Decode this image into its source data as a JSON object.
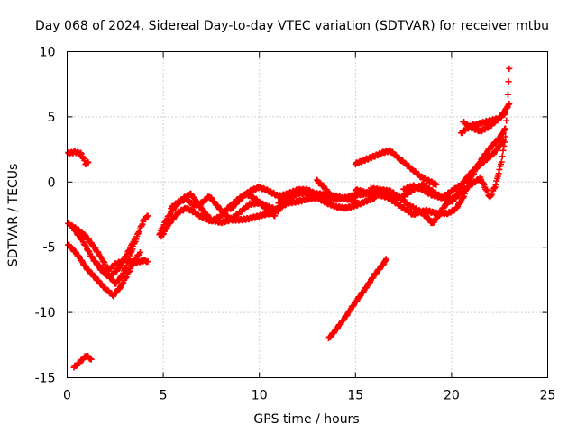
{
  "chart_data": {
    "type": "scatter",
    "title": "Day 068 of 2024, Sidereal Day-to-day VTEC variation (SDTVAR) for receiver mtbu",
    "xlabel": "GPS time / hours",
    "ylabel": "SDTVAR / TECUs",
    "xlim": [
      0,
      25
    ],
    "ylim": [
      -15,
      10
    ],
    "x_ticks": [
      "0",
      "5",
      "10",
      "15",
      "20",
      "25"
    ],
    "y_ticks": [
      "-15",
      "-10",
      "-5",
      "0",
      "5",
      "10"
    ],
    "grid": true,
    "marker": "+",
    "color": "#ff0000",
    "tracks": [
      {
        "points": [
          [
            0.05,
            2.2
          ],
          [
            0.4,
            2.3
          ],
          [
            0.7,
            2.2
          ],
          [
            0.85,
            1.8
          ],
          [
            0.95,
            1.4
          ],
          [
            1.1,
            1.5
          ]
        ]
      },
      {
        "points": [
          [
            0.35,
            -14.2
          ],
          [
            0.6,
            -13.9
          ],
          [
            0.8,
            -13.6
          ],
          [
            1.0,
            -13.3
          ],
          [
            1.25,
            -13.6
          ]
        ]
      },
      {
        "points": [
          [
            0.05,
            -3.2
          ],
          [
            0.6,
            -3.7
          ],
          [
            1.0,
            -4.2
          ],
          [
            1.5,
            -5.2
          ],
          [
            1.9,
            -6.1
          ],
          [
            2.3,
            -7.4
          ],
          [
            2.5,
            -7.8
          ],
          [
            2.8,
            -7.3
          ],
          [
            3.1,
            -6.4
          ],
          [
            3.4,
            -5.1
          ],
          [
            3.7,
            -3.9
          ],
          [
            4.0,
            -2.9
          ],
          [
            4.2,
            -2.6
          ]
        ]
      },
      {
        "points": [
          [
            0.05,
            -4.8
          ],
          [
            0.5,
            -5.5
          ],
          [
            1.0,
            -6.6
          ],
          [
            1.5,
            -7.4
          ],
          [
            2.0,
            -8.2
          ],
          [
            2.4,
            -8.7
          ],
          [
            2.8,
            -8.0
          ],
          [
            3.2,
            -6.9
          ],
          [
            3.5,
            -6.0
          ],
          [
            3.8,
            -5.4
          ]
        ]
      },
      {
        "points": [
          [
            0.3,
            -3.5
          ],
          [
            0.8,
            -4.5
          ],
          [
            1.3,
            -5.8
          ],
          [
            1.8,
            -6.8
          ],
          [
            2.2,
            -7.3
          ],
          [
            2.7,
            -6.6
          ],
          [
            3.2,
            -5.3
          ],
          [
            3.5,
            -4.4
          ]
        ]
      },
      {
        "points": [
          [
            1.5,
            -6.2
          ],
          [
            2.0,
            -6.9
          ],
          [
            2.5,
            -6.3
          ],
          [
            3.0,
            -6.0
          ],
          [
            3.5,
            -6.2
          ],
          [
            4.0,
            -6.0
          ],
          [
            4.2,
            -6.1
          ]
        ]
      },
      {
        "points": [
          [
            4.8,
            -4.0
          ],
          [
            5.2,
            -2.8
          ],
          [
            5.6,
            -1.9
          ],
          [
            6.0,
            -1.3
          ],
          [
            6.4,
            -0.9
          ],
          [
            6.7,
            -1.4
          ],
          [
            7.0,
            -2.1
          ],
          [
            7.5,
            -2.9
          ],
          [
            8.0,
            -3.1
          ],
          [
            8.5,
            -2.9
          ],
          [
            9.0,
            -2.3
          ],
          [
            9.5,
            -1.7
          ],
          [
            10.0,
            -1.6
          ],
          [
            10.5,
            -1.9
          ],
          [
            11.0,
            -2.2
          ]
        ]
      },
      {
        "points": [
          [
            4.9,
            -4.2
          ],
          [
            5.3,
            -3.2
          ],
          [
            5.8,
            -2.3
          ],
          [
            6.2,
            -2.0
          ],
          [
            6.6,
            -2.3
          ],
          [
            7.0,
            -2.7
          ],
          [
            7.5,
            -3.0
          ],
          [
            8.0,
            -2.6
          ],
          [
            8.5,
            -1.8
          ],
          [
            9.0,
            -1.2
          ],
          [
            9.3,
            -0.9
          ],
          [
            9.8,
            -1.3
          ],
          [
            10.3,
            -2.0
          ],
          [
            10.8,
            -2.6
          ]
        ]
      },
      {
        "points": [
          [
            5.4,
            -2.0
          ],
          [
            5.8,
            -1.5
          ],
          [
            6.2,
            -1.3
          ],
          [
            6.6,
            -1.8
          ],
          [
            7.0,
            -1.6
          ],
          [
            7.4,
            -1.1
          ],
          [
            7.8,
            -1.8
          ],
          [
            8.2,
            -2.5
          ],
          [
            8.6,
            -2.9
          ],
          [
            9.0,
            -2.9
          ],
          [
            9.5,
            -2.8
          ],
          [
            10.0,
            -2.6
          ],
          [
            10.5,
            -2.4
          ],
          [
            11.0,
            -2.2
          ]
        ]
      },
      {
        "points": [
          [
            8.5,
            -2.1
          ],
          [
            9.0,
            -1.3
          ],
          [
            9.5,
            -0.7
          ],
          [
            10.0,
            -0.4
          ],
          [
            10.5,
            -0.7
          ],
          [
            11.0,
            -1.1
          ],
          [
            11.5,
            -0.9
          ],
          [
            12.0,
            -0.6
          ],
          [
            12.5,
            -0.6
          ],
          [
            13.0,
            -1.0
          ],
          [
            13.5,
            -1.2
          ],
          [
            14.0,
            -1.3
          ],
          [
            14.5,
            -1.2
          ],
          [
            15.0,
            -1.0
          ],
          [
            15.5,
            -0.9
          ],
          [
            16.0,
            -0.8
          ]
        ]
      },
      {
        "points": [
          [
            10.5,
            -2.4
          ],
          [
            11.0,
            -2.0
          ],
          [
            11.5,
            -1.6
          ],
          [
            12.0,
            -1.5
          ],
          [
            12.5,
            -1.3
          ],
          [
            13.0,
            -1.2
          ],
          [
            13.5,
            -1.6
          ],
          [
            14.0,
            -1.9
          ],
          [
            14.5,
            -2.0
          ],
          [
            15.0,
            -1.8
          ],
          [
            15.5,
            -1.5
          ],
          [
            16.0,
            -1.2
          ]
        ]
      },
      {
        "points": [
          [
            11.0,
            -1.6
          ],
          [
            11.5,
            -1.2
          ],
          [
            12.0,
            -0.9
          ],
          [
            12.5,
            -0.8
          ],
          [
            13.0,
            -0.9
          ],
          [
            13.5,
            -1.0
          ],
          [
            14.0,
            -1.1
          ],
          [
            14.5,
            -1.3
          ],
          [
            15.0,
            -1.4
          ]
        ]
      },
      {
        "points": [
          [
            13.0,
            0.1
          ],
          [
            13.3,
            -0.3
          ],
          [
            13.6,
            -0.8
          ]
        ]
      },
      {
        "points": [
          [
            15.0,
            1.4
          ],
          [
            15.5,
            1.7
          ],
          [
            16.0,
            2.0
          ],
          [
            16.5,
            2.3
          ],
          [
            16.8,
            2.4
          ],
          [
            17.2,
            1.9
          ],
          [
            17.6,
            1.4
          ],
          [
            18.0,
            0.9
          ],
          [
            18.4,
            0.4
          ],
          [
            18.8,
            0.1
          ],
          [
            19.2,
            -0.2
          ]
        ]
      },
      {
        "points": [
          [
            15.0,
            -0.6
          ],
          [
            15.5,
            -0.8
          ],
          [
            16.0,
            -0.9
          ],
          [
            16.5,
            -1.1
          ],
          [
            17.0,
            -1.3
          ],
          [
            17.5,
            -1.1
          ],
          [
            18.0,
            -0.6
          ],
          [
            18.5,
            -0.2
          ],
          [
            19.0,
            -0.7
          ],
          [
            19.5,
            -1.2
          ],
          [
            20.0,
            -0.7
          ],
          [
            20.5,
            -0.2
          ],
          [
            21.0,
            0.5
          ]
        ]
      },
      {
        "points": [
          [
            15.8,
            -0.5
          ],
          [
            16.3,
            -0.6
          ],
          [
            16.8,
            -0.7
          ],
          [
            17.3,
            -1.2
          ],
          [
            17.8,
            -1.8
          ],
          [
            18.3,
            -2.2
          ],
          [
            18.8,
            -2.8
          ],
          [
            19.0,
            -3.2
          ],
          [
            19.2,
            -2.8
          ],
          [
            19.6,
            -1.9
          ],
          [
            20.0,
            -1.3
          ]
        ]
      },
      {
        "points": [
          [
            16.5,
            -1.0
          ],
          [
            17.0,
            -1.5
          ],
          [
            17.5,
            -2.0
          ],
          [
            18.0,
            -2.5
          ],
          [
            18.3,
            -2.3
          ],
          [
            18.7,
            -2.2
          ],
          [
            19.2,
            -2.4
          ],
          [
            19.8,
            -2.4
          ],
          [
            20.2,
            -2.1
          ],
          [
            20.6,
            -1.2
          ],
          [
            21.0,
            0.3
          ],
          [
            21.5,
            1.6
          ],
          [
            22.0,
            2.6
          ],
          [
            22.5,
            3.4
          ],
          [
            22.8,
            4.1
          ]
        ]
      },
      {
        "points": [
          [
            17.5,
            -0.6
          ],
          [
            18.0,
            -0.3
          ],
          [
            18.5,
            -0.6
          ],
          [
            19.0,
            -1.0
          ],
          [
            19.5,
            -1.2
          ],
          [
            20.0,
            -1.3
          ],
          [
            20.3,
            -1.0
          ],
          [
            20.7,
            0.2
          ],
          [
            21.2,
            1.0
          ],
          [
            21.7,
            1.6
          ],
          [
            22.2,
            2.2
          ],
          [
            22.7,
            3.2
          ]
        ]
      },
      {
        "points": [
          [
            13.6,
            -12.0
          ],
          [
            14.0,
            -11.3
          ],
          [
            14.5,
            -10.3
          ],
          [
            15.0,
            -9.2
          ],
          [
            15.5,
            -8.2
          ],
          [
            16.0,
            -7.1
          ],
          [
            16.5,
            -6.2
          ],
          [
            16.6,
            -5.9
          ]
        ]
      },
      {
        "points": [
          [
            20.5,
            3.8
          ],
          [
            21.0,
            4.3
          ],
          [
            21.5,
            4.5
          ],
          [
            22.0,
            4.7
          ],
          [
            22.5,
            4.9
          ],
          [
            22.8,
            5.5
          ],
          [
            23.0,
            6.0
          ]
        ]
      },
      {
        "points": [
          [
            20.6,
            4.6
          ],
          [
            21.0,
            4.2
          ],
          [
            21.5,
            3.9
          ],
          [
            22.0,
            4.3
          ],
          [
            22.4,
            4.8
          ],
          [
            22.8,
            5.3
          ]
        ]
      },
      {
        "points": [
          [
            20.0,
            -1.5
          ],
          [
            20.5,
            -0.8
          ],
          [
            21.0,
            -0.2
          ],
          [
            21.5,
            0.3
          ],
          [
            21.8,
            -0.6
          ],
          [
            22.0,
            -1.2
          ],
          [
            22.3,
            -0.2
          ],
          [
            22.6,
            1.6
          ],
          [
            22.8,
            3.5
          ],
          [
            22.9,
            5.8
          ],
          [
            23.0,
            8.7
          ]
        ]
      }
    ]
  }
}
